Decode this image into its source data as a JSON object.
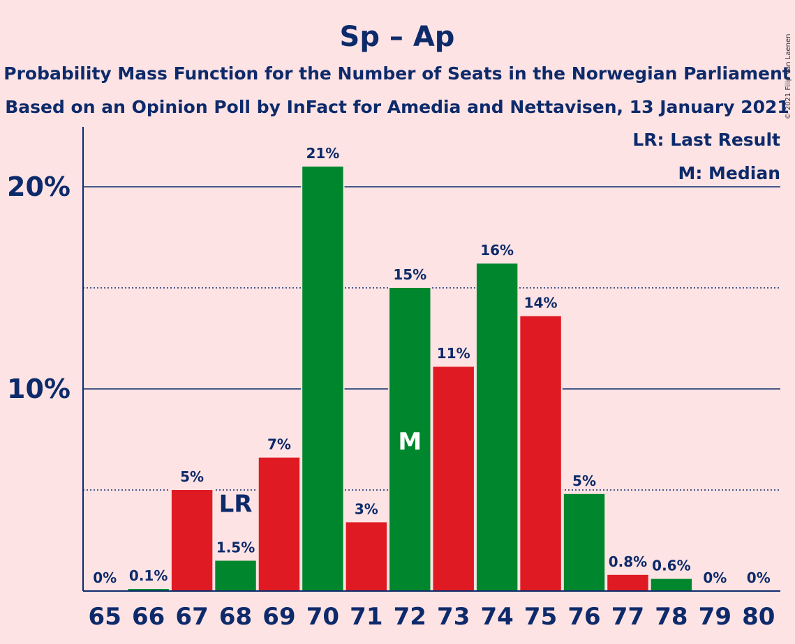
{
  "chart_data": {
    "type": "bar",
    "title": "Sp – Ap",
    "subtitle1": "Probability Mass Function for the Number of Seats in the Norwegian Parliament",
    "subtitle2": "Based on an Opinion Poll by InFact for Amedia and Nettavisen, 13 January 2021",
    "copyright": "© 2021 Filip van Laenen",
    "xlabel": "",
    "ylabel": "",
    "ylim": [
      0,
      23
    ],
    "categories": [
      "65",
      "66",
      "67",
      "68",
      "69",
      "70",
      "71",
      "72",
      "73",
      "74",
      "75",
      "76",
      "77",
      "78",
      "79",
      "80"
    ],
    "values": [
      0,
      0.1,
      5.0,
      1.5,
      6.6,
      21.0,
      3.4,
      15.0,
      11.1,
      16.2,
      13.6,
      4.8,
      0.8,
      0.6,
      0,
      0
    ],
    "labels": [
      "0%",
      "0.1%",
      "5%",
      "1.5%",
      "7%",
      "21%",
      "3%",
      "15%",
      "11%",
      "16%",
      "14%",
      "5%",
      "0.8%",
      "0.6%",
      "0%",
      "0%"
    ],
    "colors": [
      "#e01a22",
      "#00872d",
      "#e01a22",
      "#00872d",
      "#e01a22",
      "#00872d",
      "#e01a22",
      "#00872d",
      "#e01a22",
      "#00872d",
      "#e01a22",
      "#00872d",
      "#e01a22",
      "#00872d",
      "#e01a22",
      "#00872d"
    ],
    "yticks": [
      {
        "value": 10,
        "label": "10%"
      },
      {
        "value": 20,
        "label": "20%"
      }
    ],
    "minor_gridlines": [
      5,
      15
    ],
    "last_result_index": 3,
    "last_result_marker": "LR",
    "median_index": 7,
    "median_marker": "M",
    "legend": [
      "LR: Last Result",
      "M: Median"
    ],
    "axis_color": "#0d2a6a"
  }
}
